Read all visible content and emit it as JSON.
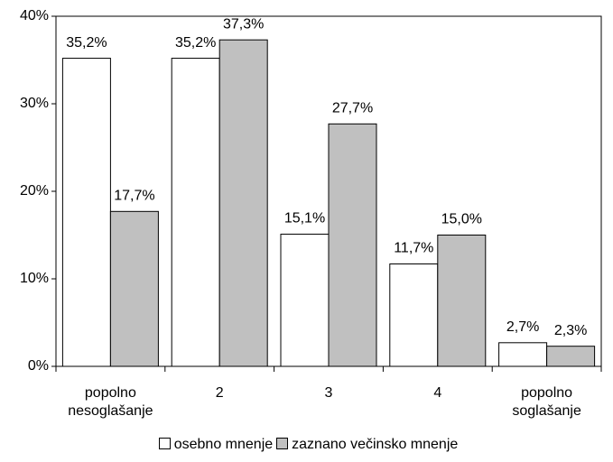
{
  "chart_data": {
    "type": "bar",
    "categories": [
      "popolno nesoglašanje",
      "2",
      "3",
      "4",
      "popolno soglašanje"
    ],
    "series": [
      {
        "name": "osebno mnenje",
        "color": "#ffffff",
        "values": [
          35.2,
          35.2,
          15.1,
          11.7,
          2.7
        ],
        "value_labels": [
          "35,2%",
          "35,2%",
          "15,1%",
          "11,7%",
          "2,7%"
        ]
      },
      {
        "name": "zaznano večinsko mnenje",
        "color": "#c0c0c0",
        "values": [
          17.7,
          37.3,
          27.7,
          15.0,
          2.3
        ],
        "value_labels": [
          "17,7%",
          "37,3%",
          "27,7%",
          "15,0%",
          "2,3%"
        ]
      }
    ],
    "ylim": [
      0,
      40
    ],
    "yticks": [
      {
        "value": 0,
        "label": "0%"
      },
      {
        "value": 10,
        "label": "10%"
      },
      {
        "value": 20,
        "label": "20%"
      },
      {
        "value": 30,
        "label": "30%"
      },
      {
        "value": 40,
        "label": "40%"
      }
    ],
    "legend": "bottom"
  }
}
